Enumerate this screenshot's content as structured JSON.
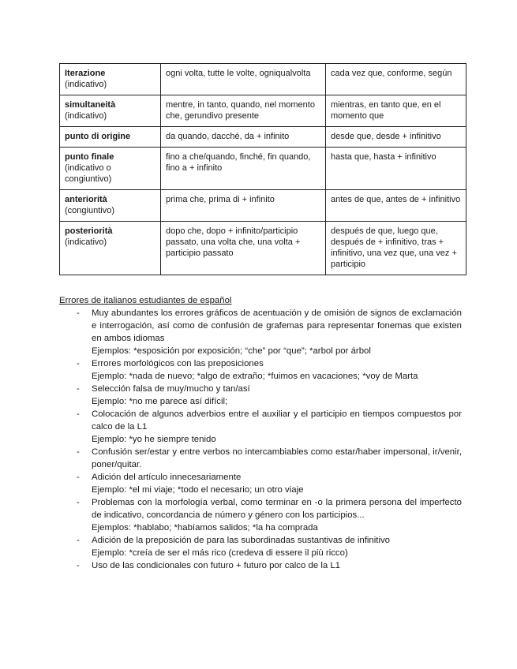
{
  "table": {
    "rows": [
      {
        "term": "Iterazione",
        "mood": "(indicativo)",
        "italian": "ogni volta, tutte le volte, ogniqualvolta",
        "spanish": "cada vez que, conforme, según"
      },
      {
        "term": "simultaneità",
        "mood": "(indicativo)",
        "italian": "mentre, in tanto, quando, nel momento che, gerundivo presente",
        "spanish": "mientras, en tanto que, en el momento que"
      },
      {
        "term": "punto di origine",
        "mood": "",
        "italian": "da quando, dacché, da + infinito",
        "spanish": "desde que, desde + infinitivo"
      },
      {
        "term": "punto finale",
        "mood": "(indicativo o congiuntivo)",
        "italian": "fino a che/quando, finché, fin quando, fino a + infinito",
        "spanish": "hasta que, hasta + infinitivo"
      },
      {
        "term": "anteriorità",
        "mood": "(congiuntivo)",
        "italian": "prima che, prima di + infinito",
        "spanish": "antes de que, antes de + infinitivo"
      },
      {
        "term": "posteriorità",
        "mood": "(indicativo)",
        "italian": "dopo che, dopo + infinito/participio passato, una volta che, una volta + participio passato",
        "spanish": "después de que, luego que, después de + infinitivo, tras + infinitivo, una vez que, una vez + participio"
      }
    ]
  },
  "errors": {
    "heading": "Errores de italianos estudiantes de español",
    "items": [
      {
        "text": "Muy abundantes los errores gráficos de acentuación y de omisión de signos de exclamación e interrogación, así como de confusión de grafemas para representar fonemas que existen en ambos idiomas",
        "example": "Ejemplos: *esposición por exposición; “che” por “que”; *arbol por árbol"
      },
      {
        "text": "Errores morfológicos con las preposiciones",
        "example": "Ejemplo: *nada de nuevo; *algo de extraño; *fuimos en vacaciones; *voy de Marta"
      },
      {
        "text": "Selección falsa de muy/mucho y tan/así",
        "example": "Ejemplo: *no me parece así difícil;"
      },
      {
        "text": "Colocación de algunos adverbios entre el auxiliar y el participio en tiempos compuestos por calco de la L1",
        "example": "Ejemplo: *yo he siempre tenido"
      },
      {
        "text": "Confusión ser/estar y entre verbos no intercambiables como estar/haber impersonal, ir/venir, poner/quitar.",
        "example": ""
      },
      {
        "text": "Adición del artículo innecesariamente",
        "example": "Ejemplo: *el mi viaje; *todo el necesario; un otro viaje"
      },
      {
        "text": "Problemas con la morfología verbal, como terminar en -o la primera persona del imperfecto de indicativo, concordancia de número y género con los participios...",
        "example": "Ejemplos: *hablabo; *habíamos salidos; *la ha comprada"
      },
      {
        "text": "Adición de la preposición de para las subordinadas sustantivas de infinitivo",
        "example": "Ejemplo: *creía de ser el más rico (credeva di essere il più ricco)"
      },
      {
        "text": "Uso de las condicionales con futuro + futuro por calco de la L1",
        "example": ""
      }
    ],
    "bullet": "-"
  }
}
